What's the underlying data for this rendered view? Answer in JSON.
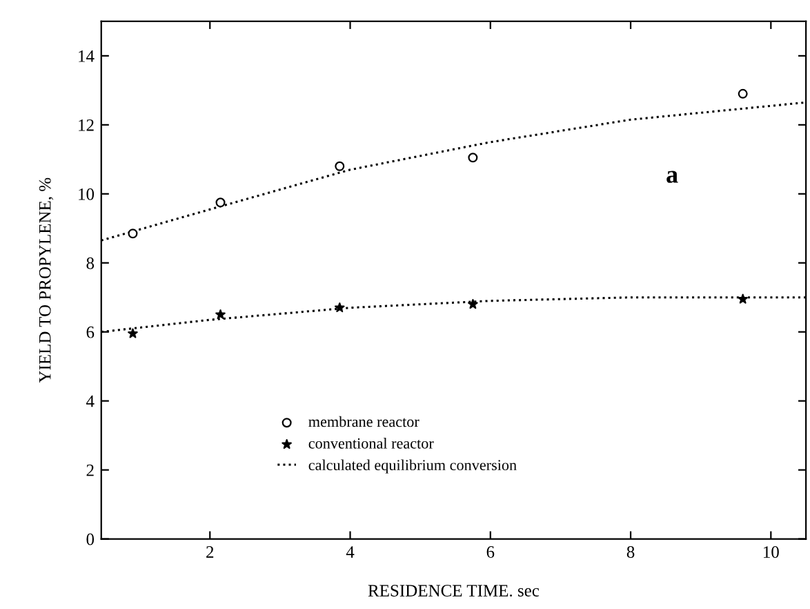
{
  "chart_data": {
    "type": "scatter",
    "xlabel": "RESIDENCE TIME. sec",
    "ylabel": "YIELD TO PROPYLENE, %",
    "xlim": [
      0.45,
      10.5
    ],
    "ylim": [
      0,
      15
    ],
    "xticks": [
      2,
      4,
      6,
      8,
      10
    ],
    "yticks": [
      0,
      2,
      4,
      6,
      8,
      10,
      12,
      14
    ],
    "grid": false,
    "legend": "bottom",
    "annotations": [
      "a"
    ],
    "series": [
      {
        "name": "membrane reactor",
        "marker": "circle",
        "color": "#000000",
        "x": [
          0.9,
          2.15,
          3.85,
          5.75,
          9.6
        ],
        "values": [
          8.85,
          9.75,
          10.8,
          11.05,
          12.9
        ]
      },
      {
        "name": "conventional reactor",
        "marker": "star",
        "color": "#000000",
        "x": [
          0.9,
          2.15,
          3.85,
          5.75,
          9.6
        ],
        "values": [
          5.95,
          6.5,
          6.7,
          6.8,
          6.95
        ]
      },
      {
        "name": "calculated equilibrium conversion",
        "type": "line",
        "marker": "none",
        "line_style": "dotted",
        "color": "#000000",
        "x": [
          0.45,
          2,
          4,
          6,
          8,
          10,
          10.5
        ],
        "values": [
          8.65,
          9.55,
          10.7,
          11.5,
          12.15,
          12.55,
          12.65
        ]
      },
      {
        "type": "line",
        "marker": "none",
        "line_style": "dotted",
        "color": "#000000",
        "x": [
          0.45,
          2,
          4,
          6,
          8,
          10,
          10.5
        ],
        "values": [
          6.0,
          6.35,
          6.7,
          6.9,
          7.0,
          7.0,
          7.0
        ]
      }
    ]
  }
}
